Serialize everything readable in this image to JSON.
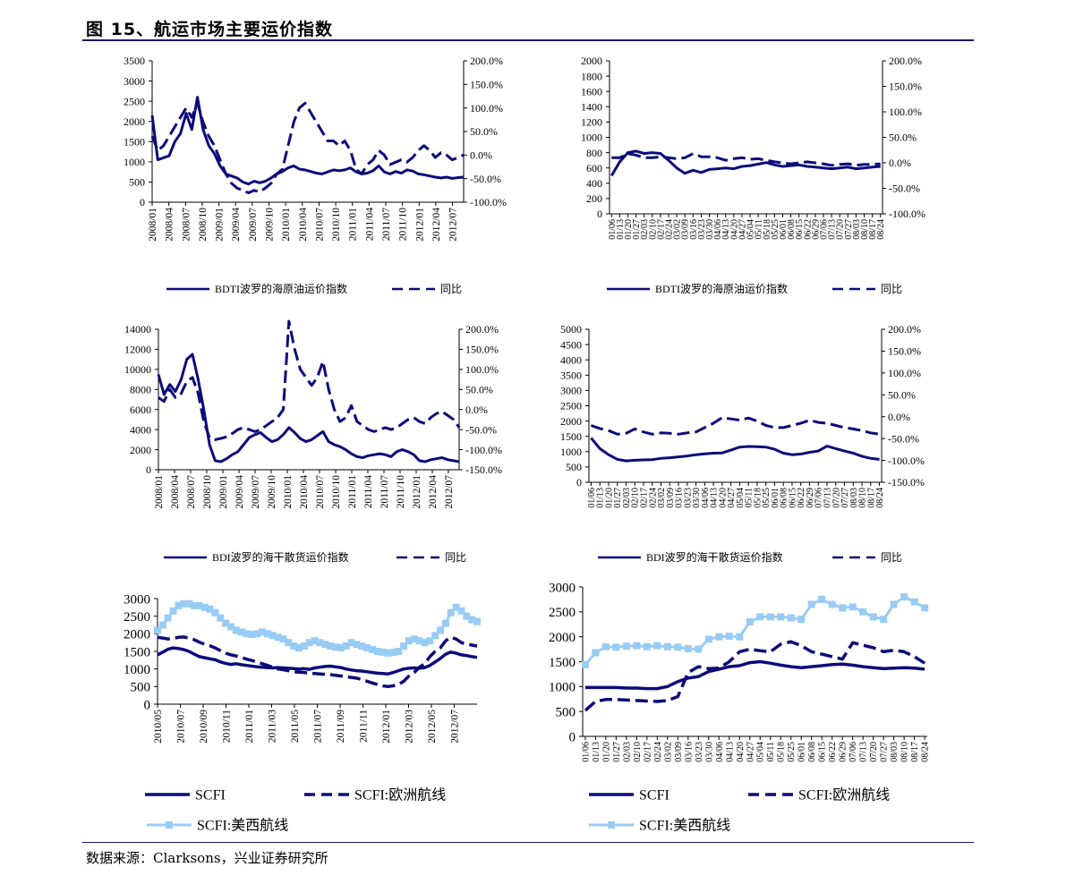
{
  "page": {
    "title": "图 15、航运市场主要运价指数",
    "source": "数据来源：Clarksons，兴业证券研究所"
  },
  "colors": {
    "navy": "#0b0b7a",
    "light": "#99ccf5",
    "rule": "#1a1a5e"
  },
  "chart_data": [
    {
      "type": "line",
      "xticks": [
        "2008/01",
        "2008/04",
        "2008/07",
        "2008/10",
        "2009/01",
        "2009/04",
        "2009/07",
        "2009/10",
        "2010/01",
        "2010/04",
        "2010/07",
        "2010/10",
        "2011/01",
        "2011/04",
        "2011/07",
        "2011/10",
        "2012/01",
        "2012/04",
        "2012/07"
      ],
      "ylim": [
        0,
        3500
      ],
      "yticks": [
        "0",
        "500",
        "1000",
        "1500",
        "2000",
        "2500",
        "3000",
        "3500"
      ],
      "y2lim": [
        -100,
        200
      ],
      "y2ticks": [
        "-100.0%",
        "-50.0%",
        "0.0%",
        "50.0%",
        "100.0%",
        "150.0%",
        "200.0%"
      ],
      "legend": [
        "BDTI波罗的海原油运价指数",
        "同比"
      ],
      "series": [
        {
          "name": "BDTI波罗的海原油运价指数",
          "axis": "left",
          "style": "solid",
          "values": [
            2150,
            1050,
            1100,
            1150,
            1500,
            1700,
            2200,
            1800,
            2600,
            1800,
            1400,
            1200,
            900,
            700,
            650,
            600,
            500,
            450,
            520,
            480,
            520,
            600,
            700,
            760,
            850,
            900,
            820,
            800,
            760,
            720,
            700,
            750,
            800,
            780,
            800,
            850,
            750,
            700,
            720,
            780,
            900,
            750,
            700,
            760,
            720,
            800,
            770,
            700,
            680,
            650,
            620,
            600,
            620,
            590,
            610,
            620
          ]
        },
        {
          "name": "同比",
          "axis": "right",
          "style": "dashed",
          "values": [
            40,
            10,
            20,
            40,
            60,
            80,
            100,
            80,
            110,
            70,
            40,
            20,
            -10,
            -40,
            -60,
            -70,
            -75,
            -80,
            -75,
            -78,
            -70,
            -60,
            -40,
            -30,
            20,
            70,
            100,
            110,
            90,
            70,
            50,
            30,
            30,
            20,
            30,
            10,
            -30,
            -40,
            -20,
            -10,
            10,
            0,
            -20,
            -15,
            -10,
            -15,
            -5,
            10,
            20,
            10,
            -5,
            5,
            0,
            -10,
            -5,
            0
          ]
        }
      ]
    },
    {
      "type": "line",
      "xticks": [
        "01/06",
        "01/13",
        "01/20",
        "01/27",
        "02/03",
        "02/10",
        "02/17",
        "02/24",
        "03/02",
        "03/09",
        "03/16",
        "03/23",
        "03/30",
        "04/06",
        "04/13",
        "04/20",
        "04/27",
        "05/04",
        "05/11",
        "05/18",
        "05/25",
        "06/01",
        "06/08",
        "06/15",
        "06/22",
        "06/29",
        "07/06",
        "07/13",
        "07/20",
        "07/27",
        "08/03",
        "08/10",
        "08/17",
        "08/24"
      ],
      "ylim": [
        0,
        2000
      ],
      "yticks": [
        "0",
        "200",
        "400",
        "600",
        "800",
        "1000",
        "1200",
        "1400",
        "1600",
        "1800",
        "2000"
      ],
      "y2lim": [
        -100,
        200
      ],
      "y2ticks": [
        "-100.0%",
        "-50.0%",
        "0.0%",
        "50.0%",
        "100.0%",
        "150.0%",
        "200.0%"
      ],
      "legend": [
        "BDTI波罗的海原油运价指数",
        "同比"
      ],
      "series": [
        {
          "name": "BDTI波罗的海原油运价指数",
          "axis": "left",
          "style": "solid",
          "values": [
            500,
            680,
            800,
            820,
            790,
            800,
            790,
            700,
            600,
            530,
            570,
            540,
            580,
            590,
            600,
            590,
            620,
            630,
            650,
            670,
            640,
            620,
            630,
            640,
            620,
            610,
            600,
            590,
            600,
            610,
            590,
            600,
            610,
            620
          ]
        },
        {
          "name": "同比",
          "axis": "right",
          "style": "dashed",
          "values": [
            10,
            10,
            18,
            15,
            10,
            10,
            12,
            10,
            8,
            10,
            18,
            12,
            12,
            10,
            5,
            8,
            10,
            7,
            8,
            5,
            2,
            0,
            -2,
            0,
            2,
            0,
            -2,
            -5,
            -3,
            -2,
            -5,
            -3,
            -3,
            -2
          ]
        }
      ]
    },
    {
      "type": "line",
      "xticks": [
        "2008/01",
        "2008/04",
        "2008/07",
        "2008/10",
        "2009/01",
        "2009/04",
        "2009/07",
        "2009/10",
        "2010/01",
        "2010/04",
        "2010/07",
        "2010/10",
        "2011/01",
        "2011/04",
        "2011/07",
        "2011/10",
        "2012/01",
        "2012/04",
        "2012/07"
      ],
      "ylim": [
        0,
        14000
      ],
      "yticks": [
        "0",
        "2000",
        "4000",
        "6000",
        "8000",
        "10000",
        "12000",
        "14000"
      ],
      "y2lim": [
        -150,
        200
      ],
      "y2ticks": [
        "-150.0%",
        "-100.0%",
        "-50.0%",
        "0.0%",
        "50.0%",
        "100.0%",
        "150.0%",
        "200.0%"
      ],
      "legend": [
        "BDI波罗的海干散货运价指数",
        "同比"
      ],
      "series": [
        {
          "name": "BDI波罗的海干散货运价指数",
          "axis": "left",
          "style": "solid",
          "values": [
            9500,
            7500,
            8500,
            7800,
            9000,
            11000,
            11500,
            9000,
            6000,
            2500,
            900,
            800,
            1100,
            1500,
            1800,
            2500,
            3200,
            3500,
            3700,
            3200,
            2800,
            3000,
            3500,
            4200,
            3700,
            3100,
            2800,
            3000,
            3400,
            3800,
            2800,
            2500,
            2300,
            2000,
            1600,
            1300,
            1200,
            1400,
            1500,
            1600,
            1500,
            1300,
            1800,
            2000,
            1800,
            1500,
            900,
            800,
            1000,
            1100,
            1200,
            1000,
            900,
            800
          ]
        },
        {
          "name": "同比",
          "axis": "right",
          "style": "dashed",
          "values": [
            30,
            20,
            50,
            30,
            40,
            70,
            80,
            40,
            -30,
            -70,
            -75,
            -72,
            -68,
            -60,
            -50,
            -45,
            -50,
            -55,
            -50,
            -40,
            -30,
            -20,
            0,
            220,
            150,
            100,
            80,
            60,
            80,
            120,
            50,
            0,
            -30,
            -20,
            10,
            -30,
            -40,
            -50,
            -55,
            -50,
            -45,
            -50,
            -45,
            -35,
            -25,
            -20,
            -30,
            -35,
            -20,
            -10,
            -5,
            -15,
            -25,
            -45
          ]
        }
      ]
    },
    {
      "type": "line",
      "xticks": [
        "01/06",
        "01/13",
        "01/20",
        "01/27",
        "02/03",
        "02/10",
        "02/17",
        "02/24",
        "03/02",
        "03/09",
        "03/16",
        "03/23",
        "03/30",
        "04/06",
        "04/13",
        "04/20",
        "04/27",
        "05/04",
        "05/11",
        "05/18",
        "05/25",
        "06/01",
        "06/08",
        "06/15",
        "06/22",
        "06/29",
        "07/06",
        "07/13",
        "07/20",
        "07/27",
        "08/03",
        "08/10",
        "08/17",
        "08/24"
      ],
      "ylim": [
        0,
        5000
      ],
      "yticks": [
        "0",
        "500",
        "1000",
        "1500",
        "2000",
        "2500",
        "3000",
        "3500",
        "4000",
        "4500",
        "5000"
      ],
      "y2lim": [
        -150,
        200
      ],
      "y2ticks": [
        "-150.0%",
        "-100.0%",
        "-50.0%",
        "0.0%",
        "50.0%",
        "100.0%",
        "150.0%",
        "200.0%"
      ],
      "legend": [
        "BDI波罗的海干散货运价指数",
        "同比"
      ],
      "series": [
        {
          "name": "BDI波罗的海干散货运价指数",
          "axis": "left",
          "style": "solid",
          "values": [
            1450,
            1100,
            900,
            750,
            700,
            720,
            730,
            740,
            780,
            800,
            830,
            860,
            900,
            930,
            950,
            960,
            1050,
            1150,
            1170,
            1160,
            1150,
            1080,
            950,
            900,
            920,
            980,
            1020,
            1180,
            1100,
            1020,
            950,
            850,
            780,
            750
          ]
        },
        {
          "name": "同比",
          "axis": "right",
          "style": "dashed",
          "values": [
            -20,
            -27,
            -32,
            -40,
            -38,
            -28,
            -35,
            -40,
            -37,
            -38,
            -40,
            -37,
            -35,
            -25,
            -15,
            -2,
            -5,
            -8,
            -3,
            -10,
            -20,
            -25,
            -25,
            -20,
            -15,
            -8,
            -13,
            -15,
            -20,
            -25,
            -28,
            -32,
            -37,
            -40
          ]
        }
      ]
    },
    {
      "type": "line",
      "xticks": [
        "2010/05",
        "2010/07",
        "2010/09",
        "2010/11",
        "2011/01",
        "2011/03",
        "2011/05",
        "2011/07",
        "2011/09",
        "2011/11",
        "2012/01",
        "2012/03",
        "2012/05",
        "2012/07"
      ],
      "ylim": [
        0,
        3000
      ],
      "yticks": [
        "0",
        "500",
        "1000",
        "1500",
        "2000",
        "2500",
        "3000"
      ],
      "legend": [
        "SCFI",
        "SCFI:欧洲航线",
        "SCFI:美西航线"
      ],
      "series": [
        {
          "name": "SCFI",
          "style": "solid",
          "values": [
            1400,
            1480,
            1560,
            1600,
            1580,
            1550,
            1500,
            1420,
            1350,
            1320,
            1290,
            1260,
            1200,
            1160,
            1130,
            1150,
            1120,
            1100,
            1080,
            1060,
            1050,
            1040,
            1030,
            1040,
            1030,
            1020,
            1010,
            1000,
            1010,
            990,
            1030,
            1050,
            1070,
            1080,
            1060,
            1040,
            1000,
            970,
            950,
            940,
            920,
            900,
            880,
            870,
            860,
            900,
            950,
            1000,
            1020,
            1030,
            1020,
            1040,
            1100,
            1200,
            1300,
            1420,
            1480,
            1450,
            1400,
            1380,
            1350,
            1330
          ]
        },
        {
          "name": "SCFI:欧洲航线",
          "style": "dashed",
          "values": [
            1900,
            1880,
            1850,
            1870,
            1900,
            1910,
            1880,
            1830,
            1760,
            1700,
            1660,
            1600,
            1520,
            1450,
            1400,
            1370,
            1330,
            1280,
            1240,
            1200,
            1150,
            1100,
            1050,
            1000,
            980,
            950,
            920,
            910,
            900,
            880,
            870,
            860,
            850,
            840,
            820,
            800,
            780,
            760,
            740,
            700,
            650,
            600,
            560,
            520,
            500,
            520,
            560,
            650,
            800,
            900,
            1050,
            1150,
            1350,
            1500,
            1600,
            1800,
            1900,
            1850,
            1750,
            1700,
            1680,
            1650
          ]
        },
        {
          "name": "SCFI:美西航线",
          "style": "marker",
          "values": [
            2100,
            2250,
            2450,
            2650,
            2800,
            2850,
            2850,
            2800,
            2800,
            2750,
            2700,
            2600,
            2450,
            2300,
            2200,
            2100,
            2050,
            2000,
            1980,
            2000,
            2050,
            2000,
            1950,
            1900,
            1850,
            1750,
            1650,
            1600,
            1650,
            1750,
            1800,
            1750,
            1700,
            1650,
            1620,
            1600,
            1650,
            1750,
            1700,
            1650,
            1600,
            1550,
            1500,
            1480,
            1450,
            1470,
            1500,
            1650,
            1800,
            1850,
            1800,
            1750,
            1800,
            1950,
            2100,
            2300,
            2600,
            2750,
            2650,
            2500,
            2400,
            2350
          ]
        }
      ]
    },
    {
      "type": "line",
      "xticks": [
        "01/06",
        "01/13",
        "01/20",
        "01/27",
        "02/03",
        "02/10",
        "02/17",
        "02/24",
        "03/02",
        "03/09",
        "03/16",
        "03/23",
        "03/30",
        "04/06",
        "04/13",
        "04/20",
        "04/27",
        "05/04",
        "05/11",
        "05/18",
        "05/25",
        "06/01",
        "06/08",
        "06/15",
        "06/22",
        "06/29",
        "07/06",
        "07/13",
        "07/20",
        "07/27",
        "08/03",
        "08/10",
        "08/17",
        "08/24"
      ],
      "ylim": [
        0,
        3000
      ],
      "yticks": [
        "0",
        "500",
        "1000",
        "1500",
        "2000",
        "2500",
        "3000"
      ],
      "legend": [
        "SCFI",
        "SCFI:欧洲航线",
        "SCFI:美西航线"
      ],
      "series": [
        {
          "name": "SCFI",
          "style": "solid",
          "values": [
            980,
            980,
            980,
            980,
            970,
            970,
            960,
            960,
            1000,
            1100,
            1170,
            1200,
            1300,
            1350,
            1400,
            1420,
            1480,
            1500,
            1470,
            1430,
            1400,
            1380,
            1400,
            1420,
            1440,
            1450,
            1430,
            1400,
            1380,
            1360,
            1370,
            1380,
            1370,
            1350
          ]
        },
        {
          "name": "SCFI:欧洲航线",
          "style": "dashed",
          "values": [
            520,
            700,
            740,
            740,
            730,
            720,
            710,
            700,
            720,
            800,
            1280,
            1400,
            1360,
            1370,
            1500,
            1700,
            1750,
            1720,
            1700,
            1850,
            1900,
            1820,
            1700,
            1650,
            1600,
            1550,
            1880,
            1830,
            1780,
            1700,
            1730,
            1700,
            1600,
            1470
          ]
        },
        {
          "name": "SCFI:美西航线",
          "style": "marker",
          "values": [
            1440,
            1680,
            1800,
            1790,
            1810,
            1820,
            1800,
            1820,
            1800,
            1790,
            1760,
            1750,
            1950,
            2000,
            2010,
            2000,
            2300,
            2400,
            2400,
            2400,
            2380,
            2350,
            2650,
            2750,
            2650,
            2580,
            2600,
            2500,
            2400,
            2350,
            2650,
            2800,
            2700,
            2580
          ]
        }
      ]
    }
  ]
}
